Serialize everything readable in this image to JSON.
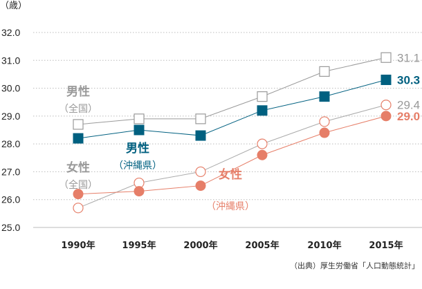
{
  "chart_data": {
    "type": "line",
    "ylabel": "（歳）",
    "ylim": [
      25.0,
      32.0
    ],
    "yticks": [
      "32.0",
      "31.0",
      "30.0",
      "29.0",
      "28.0",
      "27.0",
      "26.0",
      "25.0"
    ],
    "categories": [
      "1990年",
      "1995年",
      "2000年",
      "2005年",
      "2010年",
      "2015年"
    ],
    "grid": "horizontal dotted",
    "series": [
      {
        "key": "male_national",
        "name_main": "男性",
        "name_sub": "（全国）",
        "marker": "square-open",
        "values": [
          28.7,
          28.9,
          28.9,
          29.7,
          30.6,
          31.1
        ],
        "end_label": "31.1",
        "color": "#999999",
        "label_color": "#999999",
        "end_label_color": "#999999"
      },
      {
        "key": "male_okinawa",
        "name_main": "男性",
        "name_sub": "（沖縄県）",
        "marker": "square-filled",
        "values": [
          28.2,
          28.5,
          28.3,
          29.2,
          29.7,
          30.3
        ],
        "end_label": "30.3",
        "color": "#006080",
        "label_color": "#006080",
        "end_label_color": "#006080"
      },
      {
        "key": "female_national",
        "name_main": "女性",
        "name_sub": "（全国）",
        "marker": "circle-open",
        "values": [
          25.7,
          26.6,
          27.0,
          28.0,
          28.8,
          29.4
        ],
        "end_label": "29.4",
        "color": "#aaaaaa",
        "label_color": "#999999",
        "end_label_color": "#999999",
        "marker_stroke": "#e67e68"
      },
      {
        "key": "female_okinawa",
        "name_main": "女性",
        "name_sub": "（沖縄県）",
        "marker": "circle-filled",
        "values": [
          26.2,
          26.3,
          26.5,
          27.6,
          28.4,
          29.0
        ],
        "end_label": "29.0",
        "color": "#e67e68",
        "label_color": "#e67e68",
        "end_label_color": "#e67e68"
      }
    ],
    "source": "（出典）厚生労働省「人口動態統計」"
  },
  "colors": {
    "axis_text": "#222222",
    "grid": "#bbbbbb",
    "male_okinawa": "#006080",
    "female_okinawa": "#e67e68",
    "national": "#999999"
  }
}
